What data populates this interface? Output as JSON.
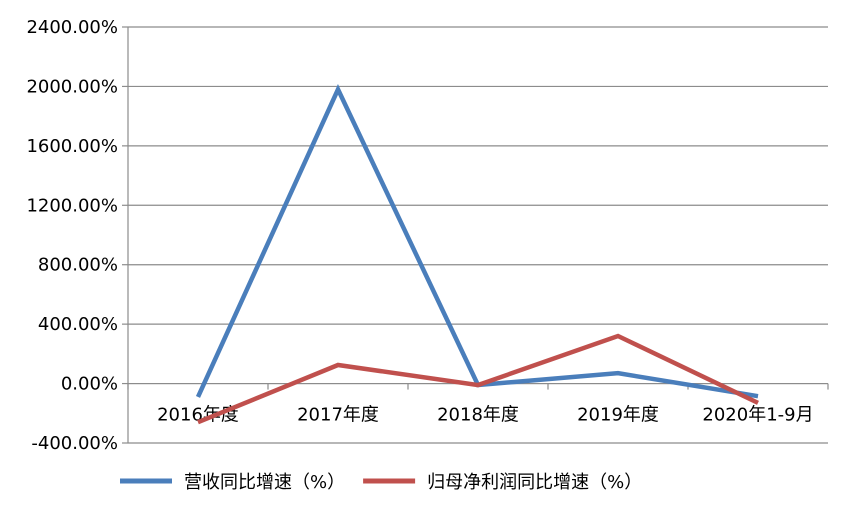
{
  "chart_data": {
    "type": "line",
    "categories": [
      "2016年度",
      "2017年度",
      "2018年度",
      "2019年度",
      "2020年1-9月"
    ],
    "series": [
      {
        "name": "营收同比增速（%）",
        "color": "#4a7ebb",
        "values": [
          -90,
          1980,
          -10,
          70,
          -85
        ]
      },
      {
        "name": "归母净利润同比增速（%）",
        "color": "#c0504d",
        "values": [
          -260,
          125,
          -10,
          320,
          -130
        ]
      }
    ],
    "ylim": [
      -400,
      2400
    ],
    "yticks": [
      2400,
      2000,
      1600,
      1200,
      800,
      400,
      0,
      -400
    ],
    "ytick_labels": [
      "2400.00%",
      "2000.00%",
      "1600.00%",
      "1200.00%",
      "800.00%",
      "400.00%",
      "0.00%",
      "-400.00%"
    ],
    "grid": true,
    "legend_position": "bottom"
  }
}
